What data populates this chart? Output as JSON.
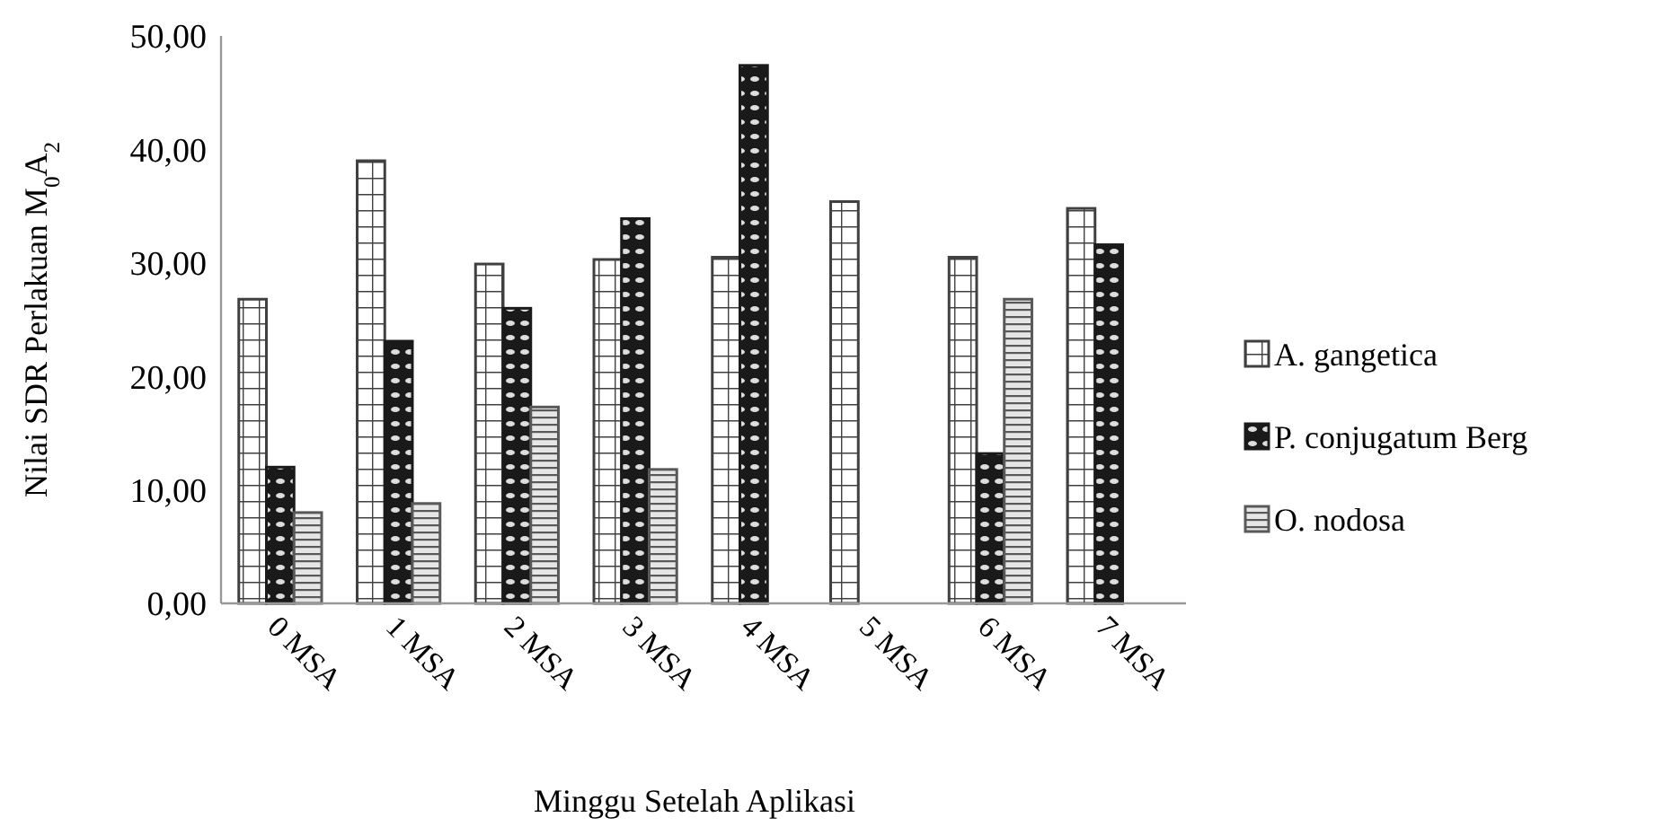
{
  "chart_data": {
    "type": "bar",
    "xlabel": "Minggu Setelah Aplikasi",
    "ylabel": "Nilai SDR Perlakuan M$_{0}$A$_{2}$",
    "categories": [
      "0 MSA",
      "1 MSA",
      "2 MSA",
      "3 MSA",
      "4 MSA",
      "5 MSA",
      "6 MSA",
      "7 MSA"
    ],
    "series": [
      {
        "name": "A. gangetica",
        "color": "#404040",
        "values": [
          26.8,
          39.0,
          29.9,
          30.3,
          30.5,
          35.4,
          30.5,
          34.8
        ]
      },
      {
        "name": "P. conjugatum Berg",
        "color": "#1a1a1a",
        "values": [
          12.0,
          23.1,
          26.0,
          33.9,
          47.4,
          null,
          13.2,
          31.6
        ]
      },
      {
        "name": "O. nodosa",
        "color": "#595959",
        "values": [
          8.0,
          8.8,
          17.3,
          11.8,
          null,
          null,
          26.8,
          null
        ]
      }
    ],
    "ylim": [
      0,
      50
    ],
    "yticks": [
      {
        "value": 0,
        "label": "0,00"
      },
      {
        "value": 10,
        "label": "10,00"
      },
      {
        "value": 20,
        "label": "20,00"
      },
      {
        "value": 30,
        "label": "30,00"
      },
      {
        "value": 40,
        "label": "40,00"
      },
      {
        "value": 50,
        "label": "50,00"
      }
    ],
    "grid": false,
    "legend": "right"
  }
}
